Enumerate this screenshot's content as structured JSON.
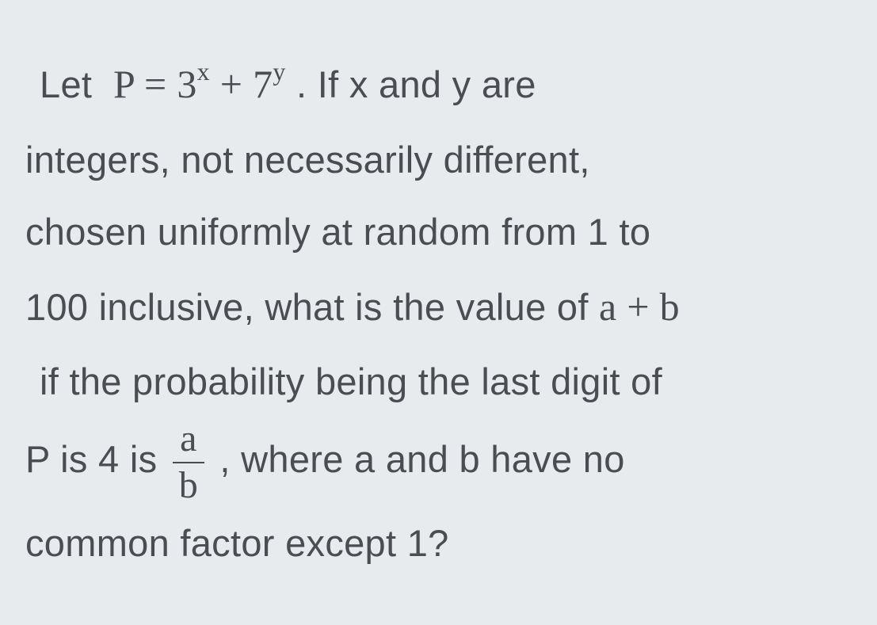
{
  "problem": {
    "text_color": "#4a4e52",
    "background_color": "#e8ebee",
    "font_size_body": 47,
    "font_size_math": 50,
    "font_size_superscript": 32,
    "line1_prefix": "Let ",
    "eq_lhs": "P",
    "eq_equals": " = ",
    "eq_base1": "3",
    "eq_exp1": "x",
    "eq_plus": " + ",
    "eq_base2": "7",
    "eq_exp2": "y",
    "line1_suffix": " . If  x and  y are",
    "line2": "integers, not necessarily different,",
    "line3": "chosen uniformly at random from  1 to",
    "line4_prefix": "100 inclusive, what is the value of  ",
    "expr_ab": "a + b",
    "line5": "if the probability being the last digit of",
    "line6_prefix": "P is  4  is   ",
    "frac_num": "a",
    "frac_den": "b",
    "line6_suffix": " , where  a and  b have no",
    "line7": "common factor except 1?"
  }
}
